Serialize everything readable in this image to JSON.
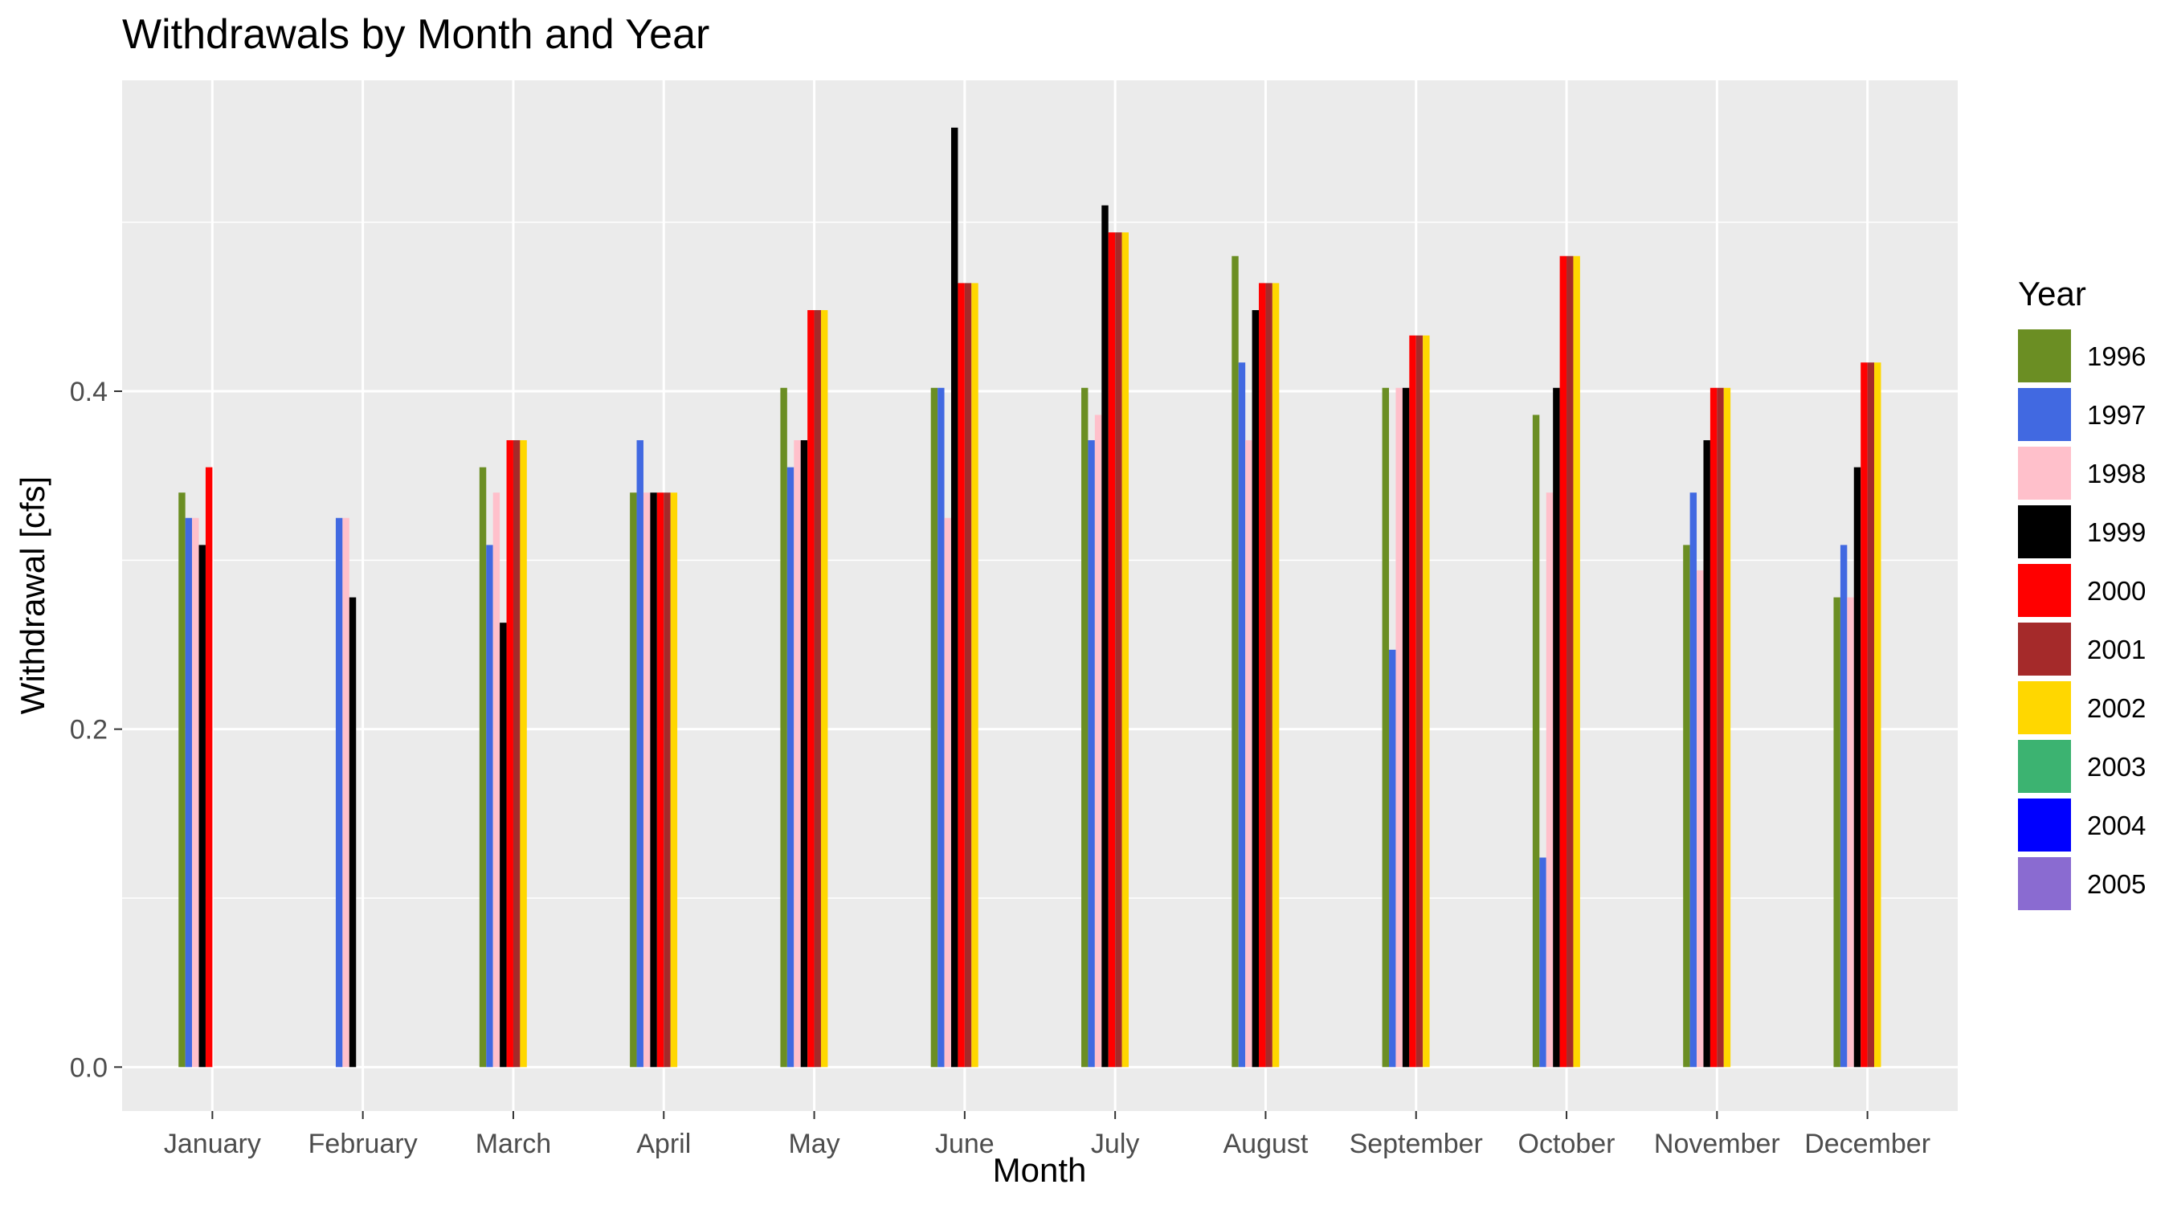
{
  "chart_data": {
    "type": "bar",
    "title": "Withdrawals by Month and Year",
    "xlabel": "Month",
    "ylabel": "Withdrawal [cfs]",
    "ylim": [
      -0.026,
      0.584
    ],
    "yticks": [
      0.0,
      0.2,
      0.4
    ],
    "ytick_labels": [
      "0.0",
      "0.2",
      "0.4"
    ],
    "grid": true,
    "legend": {
      "title": "Year",
      "position": "right"
    },
    "categories": [
      "January",
      "February",
      "March",
      "April",
      "May",
      "June",
      "July",
      "August",
      "September",
      "October",
      "November",
      "December"
    ],
    "series": [
      {
        "name": "1996",
        "color": "#6b8e23",
        "values": [
          0.34,
          null,
          0.355,
          0.34,
          0.402,
          0.402,
          0.402,
          0.48,
          0.402,
          0.386,
          0.309,
          0.278
        ]
      },
      {
        "name": "1997",
        "color": "#4169e1",
        "values": [
          0.325,
          0.325,
          0.309,
          0.371,
          0.355,
          0.402,
          0.371,
          0.417,
          0.247,
          0.124,
          0.34,
          0.309
        ]
      },
      {
        "name": "1998",
        "color": "#ffc0cb",
        "values": [
          0.325,
          0.325,
          0.34,
          0.34,
          0.371,
          0.325,
          0.386,
          0.371,
          0.402,
          0.34,
          0.294,
          0.278
        ]
      },
      {
        "name": "1999",
        "color": "#000000",
        "values": [
          0.309,
          0.278,
          0.263,
          0.34,
          0.371,
          0.556,
          0.51,
          0.448,
          0.402,
          0.402,
          0.371,
          0.355
        ]
      },
      {
        "name": "2000",
        "color": "#ff0000",
        "values": [
          0.355,
          null,
          0.371,
          0.34,
          0.448,
          0.464,
          0.494,
          0.464,
          0.433,
          0.48,
          0.402,
          0.417
        ]
      },
      {
        "name": "2001",
        "color": "#a52a2a",
        "values": [
          null,
          null,
          0.371,
          0.34,
          0.448,
          0.464,
          0.494,
          0.464,
          0.433,
          0.48,
          0.402,
          0.417
        ]
      },
      {
        "name": "2002",
        "color": "#ffd700",
        "values": [
          null,
          null,
          0.371,
          0.34,
          0.448,
          0.464,
          0.494,
          0.464,
          0.433,
          0.48,
          0.402,
          0.417
        ]
      },
      {
        "name": "2003",
        "color": "#3cb371",
        "values": [
          null,
          null,
          null,
          null,
          null,
          null,
          null,
          null,
          null,
          null,
          null,
          null
        ]
      },
      {
        "name": "2004",
        "color": "#0000ff",
        "values": [
          null,
          null,
          null,
          null,
          null,
          null,
          null,
          null,
          null,
          null,
          null,
          null
        ]
      },
      {
        "name": "2005",
        "color": "#8a6bd1",
        "values": [
          null,
          null,
          null,
          null,
          null,
          null,
          null,
          null,
          null,
          null,
          null,
          null
        ]
      }
    ]
  }
}
